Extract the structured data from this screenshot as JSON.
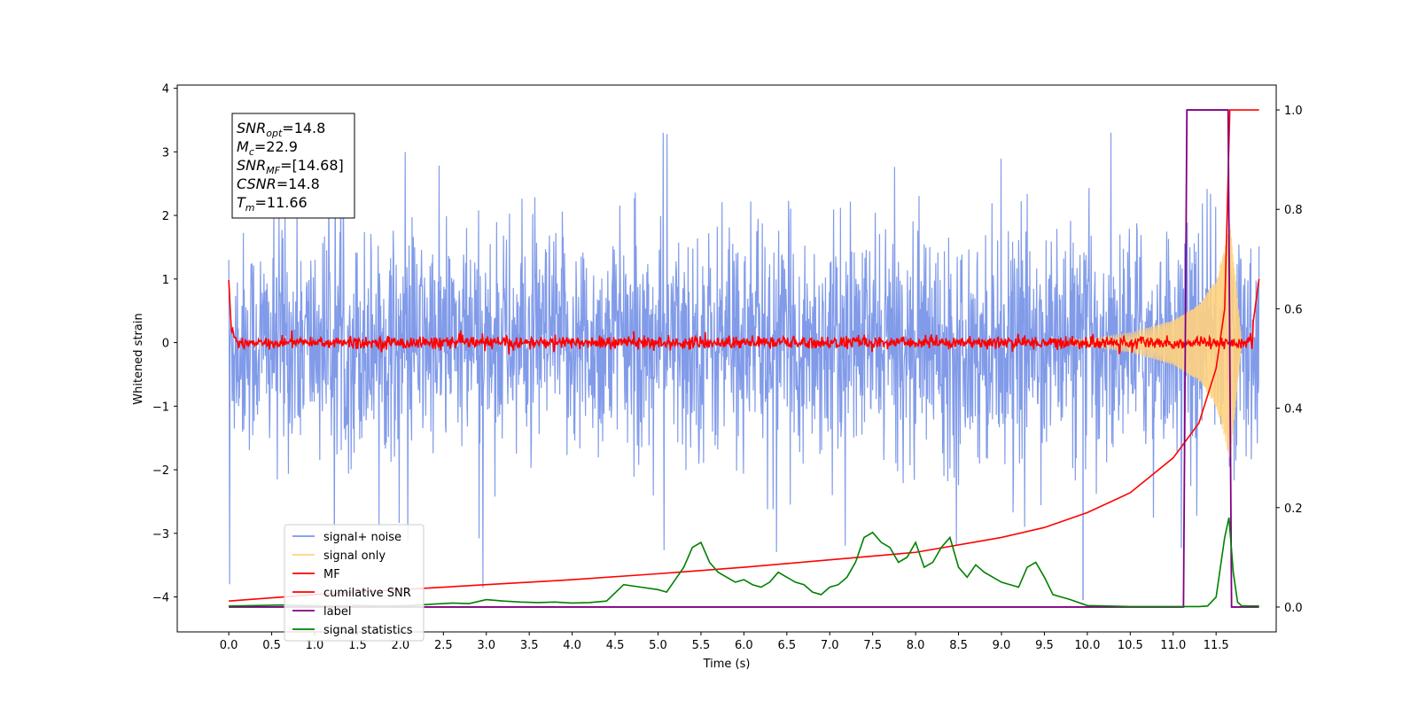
{
  "chart_data": {
    "type": "line",
    "xlabel": "Time (s)",
    "ylabel": "Whitened strain",
    "xlim": [
      -0.6,
      12.2
    ],
    "ylim": [
      -4.55,
      4.05
    ],
    "y2lim": [
      -0.05,
      1.05
    ],
    "x_ticks": [
      "0.0",
      "0.5",
      "1.0",
      "1.5",
      "2.0",
      "2.5",
      "3.0",
      "3.5",
      "4.0",
      "4.5",
      "5.0",
      "5.5",
      "6.0",
      "6.5",
      "7.0",
      "7.5",
      "8.0",
      "8.5",
      "9.0",
      "9.5",
      "10.0",
      "10.5",
      "11.0",
      "11.5"
    ],
    "y_ticks": [
      "4",
      "3",
      "2",
      "1",
      "0",
      "−1",
      "−2",
      "−3",
      "−4"
    ],
    "y2_ticks": [
      "1.0",
      "0.8",
      "0.6",
      "0.4",
      "0.2",
      "0.0"
    ],
    "grid": false,
    "legend_position": "lower-left",
    "legend": [
      {
        "label": "signal+ noise",
        "color": "#7a96e8"
      },
      {
        "label": "signal only",
        "color": "#ffd27f"
      },
      {
        "label": "MF",
        "color": "#ff0000"
      },
      {
        "label": "cumilative SNR",
        "color": "#ff0000"
      },
      {
        "label": "label",
        "color": "#800080"
      },
      {
        "label": "signal statistics",
        "color": "#008000"
      }
    ],
    "annotation": [
      {
        "base": "SNR",
        "sub": "opt",
        "value": "=14.8"
      },
      {
        "base": "M",
        "sub": "c",
        "value": "=22.9"
      },
      {
        "base": "SNR",
        "sub": "MF",
        "value": "=[14.68]"
      },
      {
        "base": "CSNR",
        "sub": "",
        "value": "=14.8"
      },
      {
        "base": "T",
        "sub": "m",
        "value": "=11.66"
      }
    ],
    "series": [
      {
        "name": "signal+ noise",
        "axis": "left",
        "color": "#7a96e8",
        "description": "whitened noise band roughly between -2 and 2 with spikes to about ±3.3, from 0.0 to 12.0 s"
      },
      {
        "name": "signal only",
        "axis": "left",
        "color": "#ffd27f",
        "chirp_x": [
          10.0,
          10.5,
          11.0,
          11.3,
          11.5,
          11.6,
          11.66,
          11.8
        ],
        "chirp_amp": [
          0.05,
          0.15,
          0.35,
          0.6,
          1.0,
          1.5,
          1.9,
          0.0
        ]
      },
      {
        "name": "MF",
        "axis": "left",
        "color": "#ff0000",
        "x": [
          0.0,
          0.03,
          0.1,
          11.9,
          12.0
        ],
        "y": [
          1.0,
          0.2,
          0.0,
          0.0,
          1.0
        ]
      },
      {
        "name": "cumilative SNR",
        "axis": "right",
        "color": "#ff0000",
        "x": [
          0.0,
          1.0,
          2.0,
          3.0,
          4.0,
          5.0,
          6.0,
          7.0,
          8.0,
          9.0,
          9.5,
          10.0,
          10.5,
          11.0,
          11.3,
          11.5,
          11.6,
          11.66,
          11.7,
          12.0
        ],
        "y": [
          0.012,
          0.025,
          0.035,
          0.045,
          0.055,
          0.067,
          0.08,
          0.095,
          0.11,
          0.14,
          0.16,
          0.19,
          0.23,
          0.3,
          0.37,
          0.48,
          0.6,
          1.0,
          1.0,
          1.0
        ]
      },
      {
        "name": "label",
        "axis": "right",
        "color": "#800080",
        "x": [
          0.0,
          11.12,
          11.16,
          11.64,
          11.68,
          12.0
        ],
        "y": [
          0.0,
          0.0,
          1.0,
          1.0,
          0.0,
          0.0
        ]
      },
      {
        "name": "signal statistics",
        "axis": "right",
        "color": "#008000",
        "x": [
          0.0,
          0.3,
          0.6,
          0.9,
          1.2,
          1.5,
          1.8,
          2.1,
          2.4,
          2.6,
          2.8,
          3.0,
          3.2,
          3.4,
          3.6,
          3.8,
          4.0,
          4.2,
          4.4,
          4.6,
          4.8,
          5.0,
          5.1,
          5.2,
          5.3,
          5.4,
          5.5,
          5.6,
          5.7,
          5.8,
          5.9,
          6.0,
          6.1,
          6.2,
          6.3,
          6.4,
          6.5,
          6.6,
          6.7,
          6.8,
          6.9,
          7.0,
          7.1,
          7.2,
          7.3,
          7.4,
          7.5,
          7.6,
          7.7,
          7.8,
          7.9,
          8.0,
          8.1,
          8.2,
          8.3,
          8.4,
          8.5,
          8.6,
          8.7,
          8.8,
          8.9,
          9.0,
          9.1,
          9.2,
          9.3,
          9.4,
          9.5,
          9.6,
          9.7,
          9.8,
          10.0,
          10.5,
          11.0,
          11.3,
          11.4,
          11.5,
          11.6,
          11.65,
          11.7,
          11.75,
          11.8,
          12.0
        ],
        "y": [
          0.002,
          0.003,
          0.004,
          0.003,
          0.002,
          0.003,
          0.002,
          0.003,
          0.006,
          0.008,
          0.007,
          0.015,
          0.012,
          0.01,
          0.009,
          0.01,
          0.008,
          0.009,
          0.012,
          0.045,
          0.04,
          0.035,
          0.03,
          0.055,
          0.08,
          0.12,
          0.13,
          0.09,
          0.07,
          0.06,
          0.05,
          0.055,
          0.045,
          0.04,
          0.05,
          0.07,
          0.06,
          0.05,
          0.045,
          0.03,
          0.025,
          0.04,
          0.045,
          0.06,
          0.09,
          0.14,
          0.15,
          0.13,
          0.12,
          0.09,
          0.1,
          0.13,
          0.08,
          0.09,
          0.12,
          0.14,
          0.08,
          0.06,
          0.085,
          0.07,
          0.06,
          0.05,
          0.045,
          0.04,
          0.08,
          0.09,
          0.06,
          0.025,
          0.02,
          0.015,
          0.003,
          0.001,
          0.001,
          0.001,
          0.002,
          0.02,
          0.14,
          0.18,
          0.07,
          0.01,
          0.002,
          0.002
        ]
      }
    ]
  }
}
